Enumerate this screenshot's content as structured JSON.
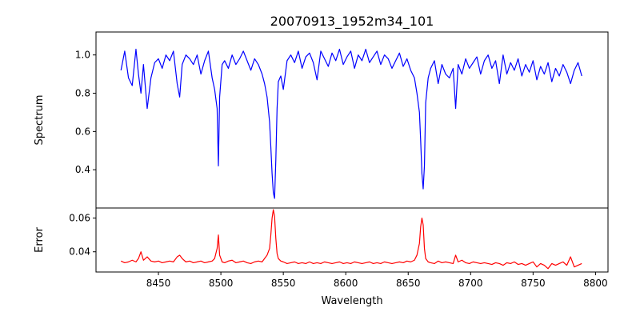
{
  "chart_data": [
    {
      "type": "line",
      "panel": "top",
      "title": "20070913_1952m34_101",
      "ylabel": "Spectrum",
      "xlabel": "",
      "xlim": [
        8400,
        8810
      ],
      "ylim": [
        0.2,
        1.12
      ],
      "yticks": [
        0.4,
        0.6,
        0.8,
        1.0
      ],
      "ytick_labels": [
        "0.4",
        "0.6",
        "0.8",
        "1.0"
      ],
      "grid": false,
      "series": [
        {
          "color": "#0000ff",
          "x": [
            8420,
            8423,
            8426,
            8429,
            8432,
            8434,
            8436,
            8438,
            8441,
            8444,
            8447,
            8450,
            8453,
            8456,
            8459,
            8462,
            8465,
            8467,
            8469,
            8472,
            8475,
            8478,
            8481,
            8484,
            8487,
            8490,
            8493,
            8495,
            8497,
            8498,
            8499,
            8501,
            8503,
            8506,
            8509,
            8512,
            8515,
            8518,
            8521,
            8524,
            8527,
            8530,
            8533,
            8535,
            8537,
            8539,
            8540,
            8541,
            8542,
            8543,
            8544,
            8545,
            8546,
            8548,
            8550,
            8553,
            8556,
            8559,
            8562,
            8565,
            8568,
            8571,
            8574,
            8577,
            8580,
            8583,
            8586,
            8589,
            8592,
            8595,
            8598,
            8601,
            8604,
            8607,
            8610,
            8613,
            8616,
            8619,
            8622,
            8625,
            8628,
            8631,
            8634,
            8637,
            8640,
            8643,
            8646,
            8649,
            8652,
            8655,
            8657,
            8659,
            8660,
            8661,
            8662,
            8663,
            8664,
            8666,
            8668,
            8671,
            8674,
            8677,
            8680,
            8683,
            8686,
            8688,
            8690,
            8693,
            8696,
            8699,
            8702,
            8705,
            8708,
            8711,
            8714,
            8717,
            8720,
            8723,
            8726,
            8729,
            8732,
            8735,
            8738,
            8741,
            8744,
            8747,
            8750,
            8753,
            8756,
            8759,
            8762,
            8765,
            8768,
            8771,
            8774,
            8777,
            8780,
            8783,
            8786,
            8789
          ],
          "y": [
            0.92,
            1.02,
            0.88,
            0.84,
            1.03,
            0.9,
            0.8,
            0.95,
            0.72,
            0.88,
            0.96,
            0.98,
            0.93,
            1.0,
            0.97,
            1.02,
            0.85,
            0.78,
            0.95,
            1.0,
            0.98,
            0.95,
            1.0,
            0.9,
            0.97,
            1.02,
            0.88,
            0.82,
            0.72,
            0.42,
            0.78,
            0.95,
            0.97,
            0.93,
            1.0,
            0.95,
            0.98,
            1.02,
            0.97,
            0.92,
            0.98,
            0.95,
            0.9,
            0.85,
            0.78,
            0.65,
            0.52,
            0.38,
            0.28,
            0.25,
            0.45,
            0.72,
            0.86,
            0.89,
            0.82,
            0.97,
            1.0,
            0.96,
            1.02,
            0.93,
            0.99,
            1.01,
            0.96,
            0.87,
            1.02,
            0.98,
            0.94,
            1.01,
            0.97,
            1.03,
            0.95,
            0.99,
            1.02,
            0.93,
            1.0,
            0.97,
            1.03,
            0.96,
            0.99,
            1.02,
            0.95,
            1.0,
            0.98,
            0.93,
            0.97,
            1.01,
            0.94,
            0.98,
            0.92,
            0.88,
            0.8,
            0.7,
            0.55,
            0.38,
            0.3,
            0.42,
            0.75,
            0.88,
            0.93,
            0.97,
            0.85,
            0.95,
            0.9,
            0.88,
            0.93,
            0.72,
            0.95,
            0.9,
            0.98,
            0.93,
            0.96,
            0.99,
            0.9,
            0.97,
            1.0,
            0.93,
            0.97,
            0.85,
            1.0,
            0.9,
            0.96,
            0.92,
            0.98,
            0.89,
            0.95,
            0.91,
            0.97,
            0.87,
            0.94,
            0.9,
            0.96,
            0.86,
            0.93,
            0.89,
            0.95,
            0.91,
            0.85,
            0.92,
            0.96,
            0.89
          ]
        }
      ]
    },
    {
      "type": "line",
      "panel": "bottom",
      "title": "",
      "ylabel": "Error",
      "xlabel": "Wavelength",
      "xlim": [
        8400,
        8810
      ],
      "ylim": [
        0.028,
        0.066
      ],
      "xticks": [
        8450,
        8500,
        8550,
        8600,
        8650,
        8700,
        8750,
        8800
      ],
      "xtick_labels": [
        "8450",
        "8500",
        "8550",
        "8600",
        "8650",
        "8700",
        "8750",
        "8800"
      ],
      "yticks": [
        0.04,
        0.06
      ],
      "ytick_labels": [
        "0.04",
        "0.06"
      ],
      "grid": false,
      "series": [
        {
          "color": "#ff0000",
          "x": [
            8420,
            8423,
            8426,
            8429,
            8432,
            8434,
            8436,
            8438,
            8441,
            8444,
            8447,
            8450,
            8453,
            8456,
            8459,
            8462,
            8465,
            8467,
            8469,
            8472,
            8475,
            8478,
            8481,
            8484,
            8487,
            8490,
            8493,
            8495,
            8497,
            8498,
            8499,
            8501,
            8503,
            8506,
            8509,
            8512,
            8515,
            8518,
            8521,
            8524,
            8527,
            8530,
            8533,
            8535,
            8537,
            8539,
            8540,
            8541,
            8542,
            8543,
            8544,
            8545,
            8546,
            8548,
            8550,
            8553,
            8556,
            8559,
            8562,
            8565,
            8568,
            8571,
            8574,
            8577,
            8580,
            8583,
            8586,
            8589,
            8592,
            8595,
            8598,
            8601,
            8604,
            8607,
            8610,
            8613,
            8616,
            8619,
            8622,
            8625,
            8628,
            8631,
            8634,
            8637,
            8640,
            8643,
            8646,
            8649,
            8652,
            8655,
            8657,
            8659,
            8660,
            8661,
            8662,
            8663,
            8664,
            8666,
            8668,
            8671,
            8674,
            8677,
            8680,
            8683,
            8686,
            8688,
            8690,
            8693,
            8696,
            8699,
            8702,
            8705,
            8708,
            8711,
            8714,
            8717,
            8720,
            8723,
            8726,
            8729,
            8732,
            8735,
            8738,
            8741,
            8744,
            8747,
            8750,
            8753,
            8756,
            8759,
            8762,
            8765,
            8768,
            8771,
            8774,
            8777,
            8780,
            8783,
            8786,
            8789
          ],
          "y": [
            0.0345,
            0.0335,
            0.034,
            0.035,
            0.034,
            0.036,
            0.04,
            0.035,
            0.037,
            0.0345,
            0.034,
            0.0345,
            0.0335,
            0.034,
            0.0345,
            0.034,
            0.037,
            0.038,
            0.036,
            0.034,
            0.0345,
            0.0335,
            0.034,
            0.0345,
            0.0335,
            0.034,
            0.0345,
            0.036,
            0.042,
            0.05,
            0.038,
            0.034,
            0.0335,
            0.0345,
            0.035,
            0.0335,
            0.034,
            0.0345,
            0.0335,
            0.033,
            0.034,
            0.0345,
            0.034,
            0.036,
            0.038,
            0.042,
            0.05,
            0.06,
            0.065,
            0.061,
            0.048,
            0.039,
            0.036,
            0.0345,
            0.034,
            0.033,
            0.0335,
            0.034,
            0.033,
            0.0335,
            0.033,
            0.034,
            0.033,
            0.0335,
            0.033,
            0.034,
            0.0335,
            0.033,
            0.0335,
            0.034,
            0.033,
            0.0335,
            0.033,
            0.034,
            0.0335,
            0.033,
            0.0335,
            0.034,
            0.033,
            0.0335,
            0.033,
            0.034,
            0.0335,
            0.033,
            0.0335,
            0.034,
            0.0335,
            0.0345,
            0.034,
            0.035,
            0.038,
            0.045,
            0.055,
            0.06,
            0.056,
            0.042,
            0.036,
            0.034,
            0.0335,
            0.033,
            0.0345,
            0.0335,
            0.034,
            0.0335,
            0.033,
            0.038,
            0.034,
            0.035,
            0.0335,
            0.033,
            0.034,
            0.0335,
            0.033,
            0.0335,
            0.033,
            0.0325,
            0.0335,
            0.033,
            0.032,
            0.0335,
            0.033,
            0.034,
            0.0325,
            0.033,
            0.032,
            0.033,
            0.034,
            0.031,
            0.033,
            0.032,
            0.03,
            0.033,
            0.032,
            0.033,
            0.034,
            0.032,
            0.037,
            0.031,
            0.032,
            0.033
          ]
        }
      ]
    }
  ]
}
